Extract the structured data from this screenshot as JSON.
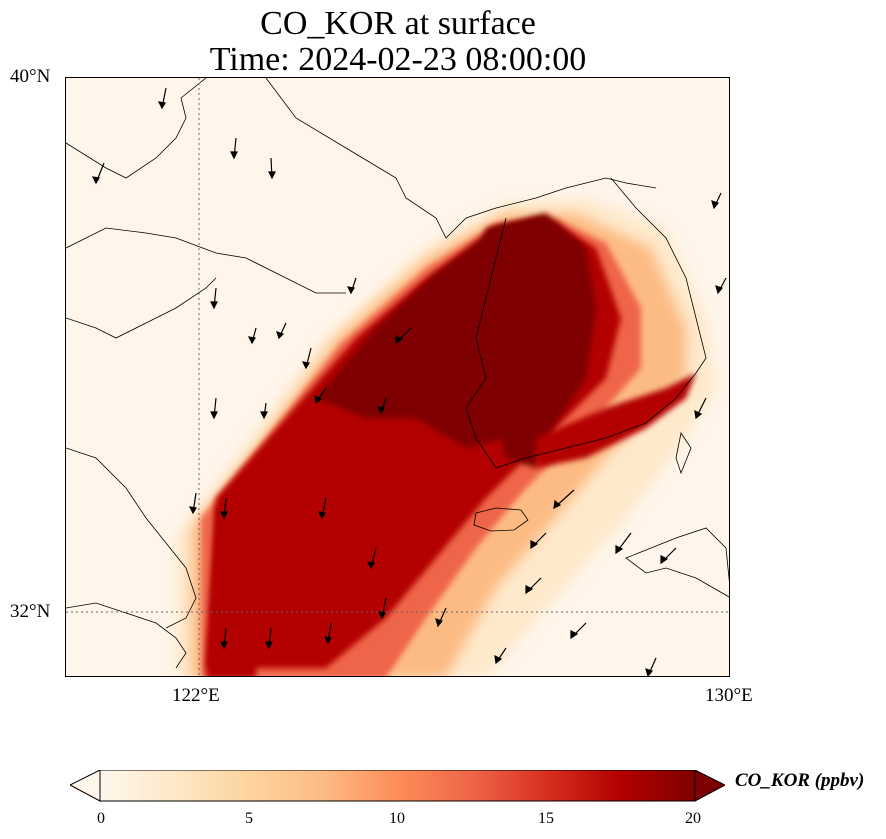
{
  "title": {
    "line1": "CO_KOR at surface",
    "line2": "Time: 2024-02-23 08:00:00"
  },
  "axes": {
    "lat_labels": [
      "40°N",
      "32°N"
    ],
    "lon_labels": [
      "122°E",
      "130°E"
    ],
    "lat_range": [
      31.0,
      40.0
    ],
    "lon_range": [
      120.0,
      130.0
    ],
    "gridlines": "dotted at 122°E and 32°N"
  },
  "colorbar": {
    "label": "CO_KOR (ppbv)",
    "ticks": [
      "0",
      "5",
      "10",
      "15",
      "20"
    ],
    "range": [
      0,
      20
    ],
    "extend": "both",
    "colormap": "OrRd",
    "colors": [
      "#fff7ec",
      "#fee8c8",
      "#fdd49e",
      "#fdbb84",
      "#fc8d59",
      "#ef6548",
      "#d7301f",
      "#b30000",
      "#7f0000"
    ]
  },
  "chart_data": {
    "type": "heatmap",
    "variable": "CO_KOR",
    "units": "ppbv",
    "plume": "high concentrations (near 20 ppbv) over the Korean peninsula west coast and Yellow Sea, spreading southwest toward the Chinese coast near 31-33°N, 122-124°E",
    "wind": "arrows mostly pointing south/southwest; stronger southwest flow southeast of Korea"
  }
}
